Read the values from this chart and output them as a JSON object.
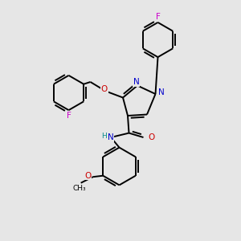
{
  "background_color": "#e6e6e6",
  "figsize": [
    3.0,
    3.0
  ],
  "dpi": 100,
  "atom_colors": {
    "C": "#000000",
    "N": "#0000cc",
    "O": "#cc0000",
    "F": "#cc00cc",
    "H": "#008888"
  },
  "bond_color": "#000000",
  "bond_width": 1.4,
  "font_size_atom": 7.5,
  "font_size_small": 6.5
}
